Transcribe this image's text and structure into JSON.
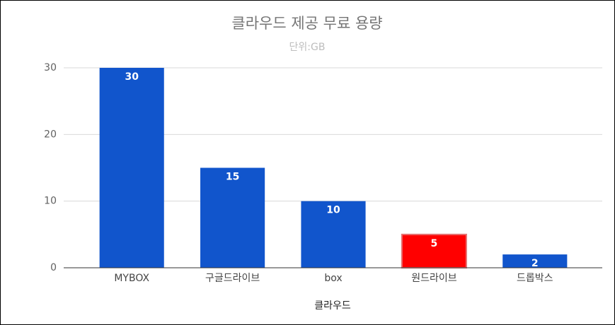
{
  "chart_data": {
    "type": "bar",
    "title": "클라우드 제공 무료 용량",
    "subtitle": "단위:GB",
    "x_label": "클라우드",
    "categories": [
      "MYBOX",
      "구글드라이브",
      "box",
      "원드라이브",
      "드롭박스"
    ],
    "values": [
      30,
      15,
      10,
      5,
      2
    ],
    "colors": [
      "#1155cc",
      "#1155cc",
      "#1155cc",
      "#ff0000",
      "#1155cc"
    ],
    "ylim": [
      0,
      30
    ],
    "yticks": [
      0,
      10,
      20,
      30
    ],
    "grid": true,
    "data_labels": true
  }
}
